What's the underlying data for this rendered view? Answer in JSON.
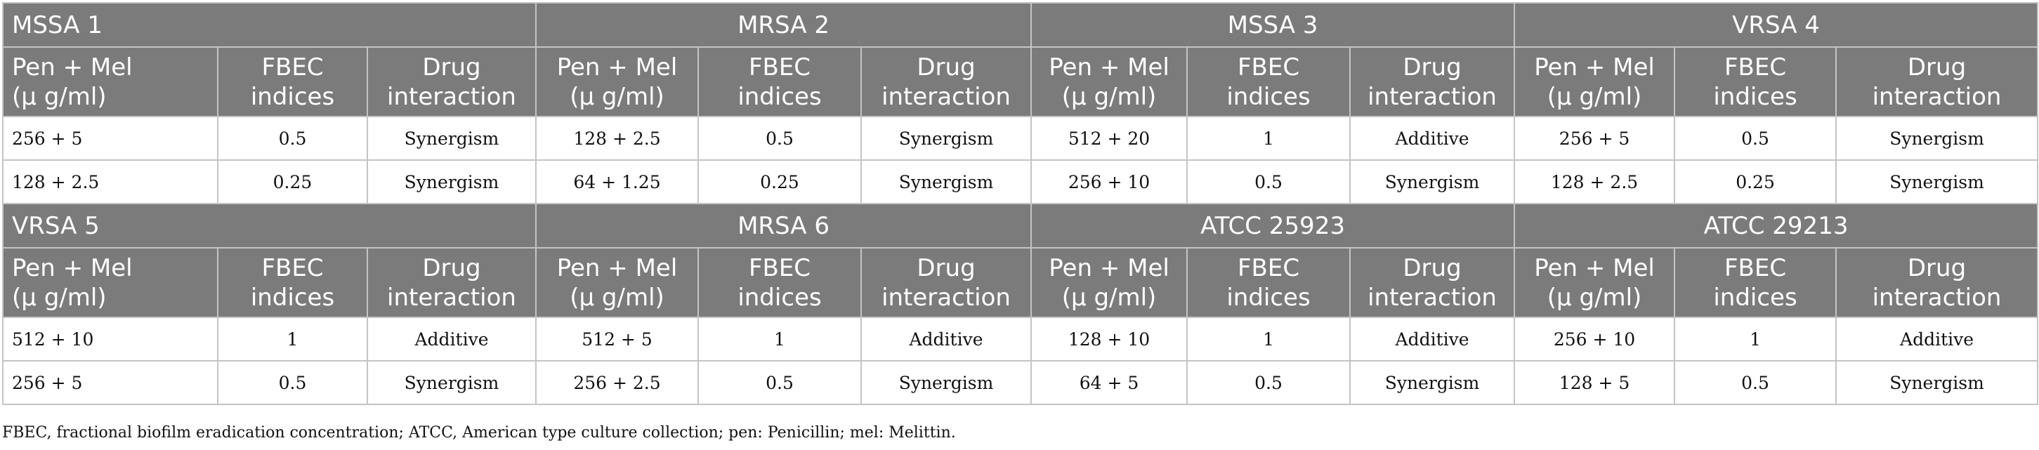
{
  "table": {
    "column_headers": [
      "Pen + Mel\n(μ g/ml)",
      "FBEC\nindices",
      "Drug\ninteraction"
    ],
    "blocks": [
      {
        "groups": [
          "MSSA 1",
          "MRSA 2",
          "MSSA 3",
          "VRSA 4"
        ],
        "rows": [
          [
            "256 + 5",
            "0.5",
            "Synergism",
            "128 + 2.5",
            "0.5",
            "Synergism",
            "512 + 20",
            "1",
            "Additive",
            "256 + 5",
            "0.5",
            "Synergism"
          ],
          [
            "128 + 2.5",
            "0.25",
            "Synergism",
            "64 + 1.25",
            "0.25",
            "Synergism",
            "256 + 10",
            "0.5",
            "Synergism",
            "128 + 2.5",
            "0.25",
            "Synergism"
          ]
        ]
      },
      {
        "groups": [
          "VRSA 5",
          "MRSA 6",
          "ATCC 25923",
          "ATCC 29213"
        ],
        "rows": [
          [
            "512 + 10",
            "1",
            "Additive",
            "512 + 5",
            "1",
            "Additive",
            "128 + 10",
            "1",
            "Additive",
            "256 + 10",
            "1",
            "Additive"
          ],
          [
            "256 + 5",
            "0.5",
            "Synergism",
            "256 + 2.5",
            "0.5",
            "Synergism",
            "64 + 5",
            "0.5",
            "Synergism",
            "128 + 5",
            "0.5",
            "Synergism"
          ]
        ]
      }
    ],
    "footnote": "FBEC, fractional biofilm eradication concentration; ATCC, American type culture collection; pen: Penicillin; mel: Melittin."
  },
  "colors": {
    "header_bg": "#7b7b7b",
    "header_text": "#ffffff",
    "border": "#c4c4c4"
  }
}
